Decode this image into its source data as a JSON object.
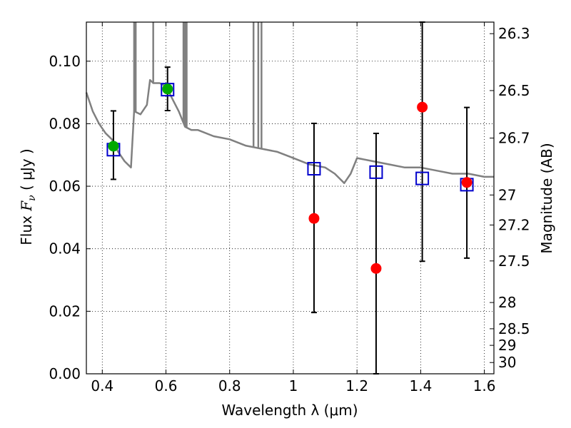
{
  "chart_data": {
    "type": "scatter",
    "xlabel": "Wavelength  λ (μm)",
    "ylabel": "Flux  F_ν  ( μJy )",
    "ylabel_parts": {
      "prefix": "Flux  ",
      "var": "F",
      "sub": "ν",
      "suffix": "  ( μJy )"
    },
    "y2label": "Magnitude (AB)",
    "xlim": [
      0.35,
      1.63
    ],
    "ylim": [
      0.0,
      0.1125
    ],
    "grid": true,
    "x_ticks": [
      0.4,
      0.6,
      0.8,
      1.0,
      1.2,
      1.4,
      1.6
    ],
    "x_tick_labels": [
      "0.4",
      "0.6",
      "0.8",
      "1",
      "1.2",
      "1.4",
      "1.6"
    ],
    "y_ticks": [
      0.0,
      0.02,
      0.04,
      0.06,
      0.08,
      0.1
    ],
    "y_tick_labels": [
      "0.00",
      "0.02",
      "0.04",
      "0.06",
      "0.08",
      "0.10"
    ],
    "y2_ticks": [
      {
        "label": "26.3",
        "flux": 0.1088
      },
      {
        "label": "26.5",
        "flux": 0.0906
      },
      {
        "label": "26.7",
        "flux": 0.0754
      },
      {
        "label": "27",
        "flux": 0.0572
      },
      {
        "label": "27.2",
        "flux": 0.0476
      },
      {
        "label": "27.5",
        "flux": 0.0361
      },
      {
        "label": "28",
        "flux": 0.0228
      },
      {
        "label": "28.5",
        "flux": 0.0144
      },
      {
        "label": "29",
        "flux": 0.0091
      },
      {
        "label": "30",
        "flux": 0.0036
      }
    ],
    "sed_model": {
      "color": "#808080",
      "x": [
        0.35,
        0.37,
        0.39,
        0.41,
        0.43,
        0.45,
        0.47,
        0.49,
        0.5,
        0.52,
        0.54,
        0.55,
        0.56,
        0.58,
        0.6,
        0.62,
        0.64,
        0.66,
        0.68,
        0.7,
        0.75,
        0.8,
        0.85,
        0.9,
        0.95,
        1.0,
        1.05,
        1.1,
        1.13,
        1.16,
        1.18,
        1.2,
        1.25,
        1.3,
        1.35,
        1.4,
        1.45,
        1.5,
        1.55,
        1.6,
        1.63
      ],
      "y": [
        0.09,
        0.084,
        0.08,
        0.077,
        0.075,
        0.071,
        0.068,
        0.066,
        0.084,
        0.083,
        0.086,
        0.094,
        0.093,
        0.093,
        0.092,
        0.088,
        0.084,
        0.079,
        0.078,
        0.078,
        0.076,
        0.075,
        0.073,
        0.072,
        0.071,
        0.069,
        0.067,
        0.066,
        0.064,
        0.061,
        0.064,
        0.069,
        0.068,
        0.067,
        0.066,
        0.066,
        0.065,
        0.064,
        0.064,
        0.063,
        0.063
      ]
    },
    "emission_lines": [
      {
        "x": 0.5,
        "y_top": 0.1125
      },
      {
        "x": 0.505,
        "y_top": 0.1125
      },
      {
        "x": 0.56,
        "y_top": 0.1125
      },
      {
        "x": 0.655,
        "y_top": 0.1125
      },
      {
        "x": 0.66,
        "y_top": 0.1125
      },
      {
        "x": 0.665,
        "y_top": 0.1125
      },
      {
        "x": 0.875,
        "y_top": 0.1125
      },
      {
        "x": 0.89,
        "y_top": 0.1125
      },
      {
        "x": 0.9,
        "y_top": 0.1125
      }
    ],
    "series": [
      {
        "marker": "circle-filled",
        "x": [
          0.435,
          0.605,
          1.065,
          1.26,
          1.405,
          1.545
        ],
        "values": [
          0.0728,
          0.0911,
          0.0497,
          0.0337,
          0.0853,
          0.0612
        ],
        "colors": [
          "#00aa00",
          "#00aa00",
          "#ff0000",
          "#ff0000",
          "#ff0000",
          "#ff0000"
        ],
        "yerr_low": [
          0.0622,
          0.0842,
          0.0196,
          0.0,
          0.036,
          0.037
        ],
        "yerr_high": [
          0.0841,
          0.0981,
          0.0801,
          0.0769,
          0.1125,
          0.0852
        ]
      },
      {
        "marker": "square-open",
        "color": "#0000cc",
        "x": [
          0.435,
          0.605,
          1.065,
          1.26,
          1.405,
          1.545
        ],
        "values": [
          0.0717,
          0.0909,
          0.0656,
          0.0645,
          0.0625,
          0.0605
        ]
      }
    ]
  }
}
